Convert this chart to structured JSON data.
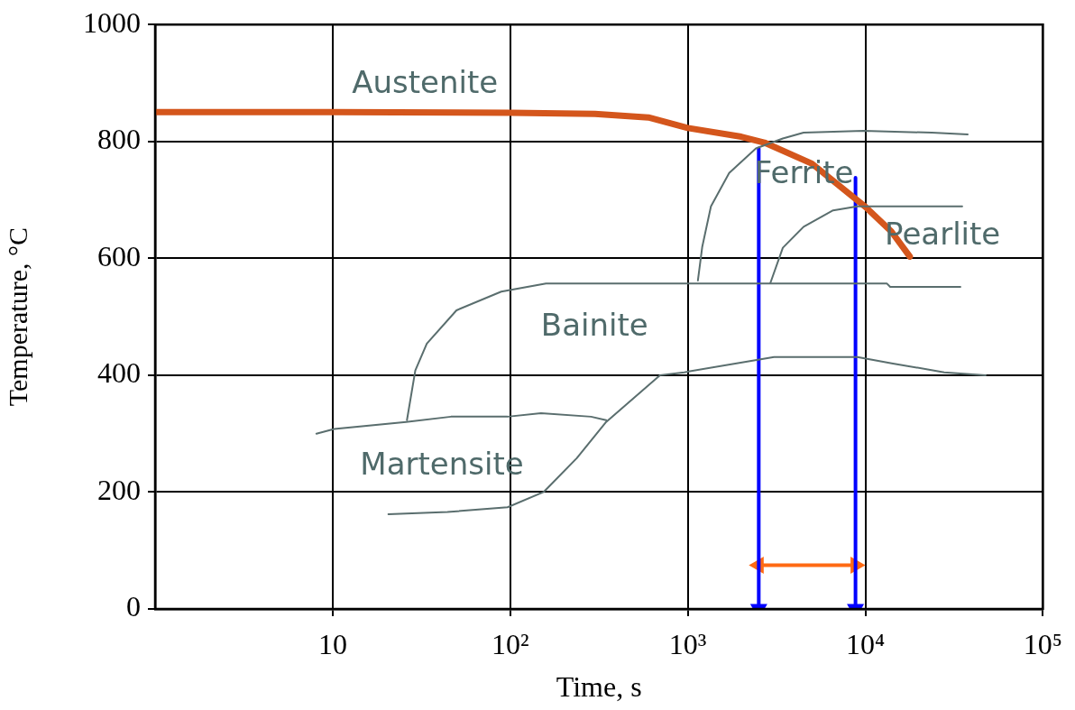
{
  "chart_data": {
    "type": "line",
    "xlabel": "Time, s",
    "ylabel": "Temperature, °C",
    "xlim": [
      1,
      100000
    ],
    "ylim": [
      0,
      1000
    ],
    "xticks": [
      {
        "value": 10,
        "label": "10"
      },
      {
        "value": 100,
        "label": "10²"
      },
      {
        "value": 1000,
        "label": "10³"
      },
      {
        "value": 10000,
        "label": "10⁴"
      },
      {
        "value": 100000,
        "label": "10⁵"
      }
    ],
    "yticks": [
      0,
      200,
      400,
      600,
      800,
      1000
    ],
    "log": "x",
    "grid": true,
    "legend": false,
    "line_style": "solid",
    "marker": "none",
    "series": [
      {
        "color": "#5a6e6e",
        "x": [
          1140,
          1205,
          1350,
          1710,
          2420,
          3430,
          4490,
          9770,
          23700,
          37700
        ],
        "values": [
          562,
          619,
          689,
          746,
          788,
          805,
          815,
          818,
          815,
          812
        ]
      },
      {
        "color": "#5a6e6e",
        "x": [
          2920,
          3430,
          4490,
          6580,
          9010,
          35100
        ],
        "values": [
          558,
          618,
          654,
          682,
          689,
          689
        ]
      },
      {
        "color": "#5a6e6e",
        "x": [
          26.2,
          29.2,
          33.9,
          49.8,
          89,
          159,
          13200,
          13800,
          34300
        ],
        "values": [
          323,
          408,
          454,
          511,
          543,
          557,
          557,
          551,
          551
        ]
      },
      {
        "color": "#5a6e6e",
        "x": [
          8.1,
          10.2,
          25.9,
          46.4,
          96.6,
          149,
          285,
          347
        ],
        "values": [
          300,
          308,
          320,
          329,
          329,
          335,
          329,
          323
        ]
      },
      {
        "color": "#5a6e6e",
        "x": [
          20.6,
          44.3,
          96.6,
          154,
          237,
          347,
          697,
          955,
          3060,
          9010,
          14300,
          27800,
          47600
        ],
        "values": [
          162,
          166,
          174,
          200,
          258,
          320,
          400,
          405,
          431,
          431,
          420,
          405,
          400
        ]
      },
      {
        "color": "#d4561c",
        "x": [
          1,
          10,
          100,
          300,
          600,
          1000,
          2000,
          2700,
          5000,
          10000,
          14000,
          17800
        ],
        "values": [
          850,
          850,
          849,
          847,
          841,
          823,
          808,
          798,
          762,
          688,
          646,
          603
        ]
      },
      {
        "color": "#0000ff",
        "x": [
          2510,
          2510
        ],
        "values": [
          788,
          0
        ],
        "marker": "triangle"
      },
      {
        "color": "#0000ff",
        "x": [
          8800,
          8800
        ],
        "values": [
          738,
          0
        ],
        "marker": "triangle"
      },
      {
        "color": "#ff6a13",
        "x": [
          2510,
          8800
        ],
        "values": [
          75,
          75
        ],
        "marker": "triangle"
      }
    ],
    "annotations": [
      "Austenite",
      "Ferrite",
      "Pearlite",
      "Bainite",
      "Martensite"
    ]
  }
}
